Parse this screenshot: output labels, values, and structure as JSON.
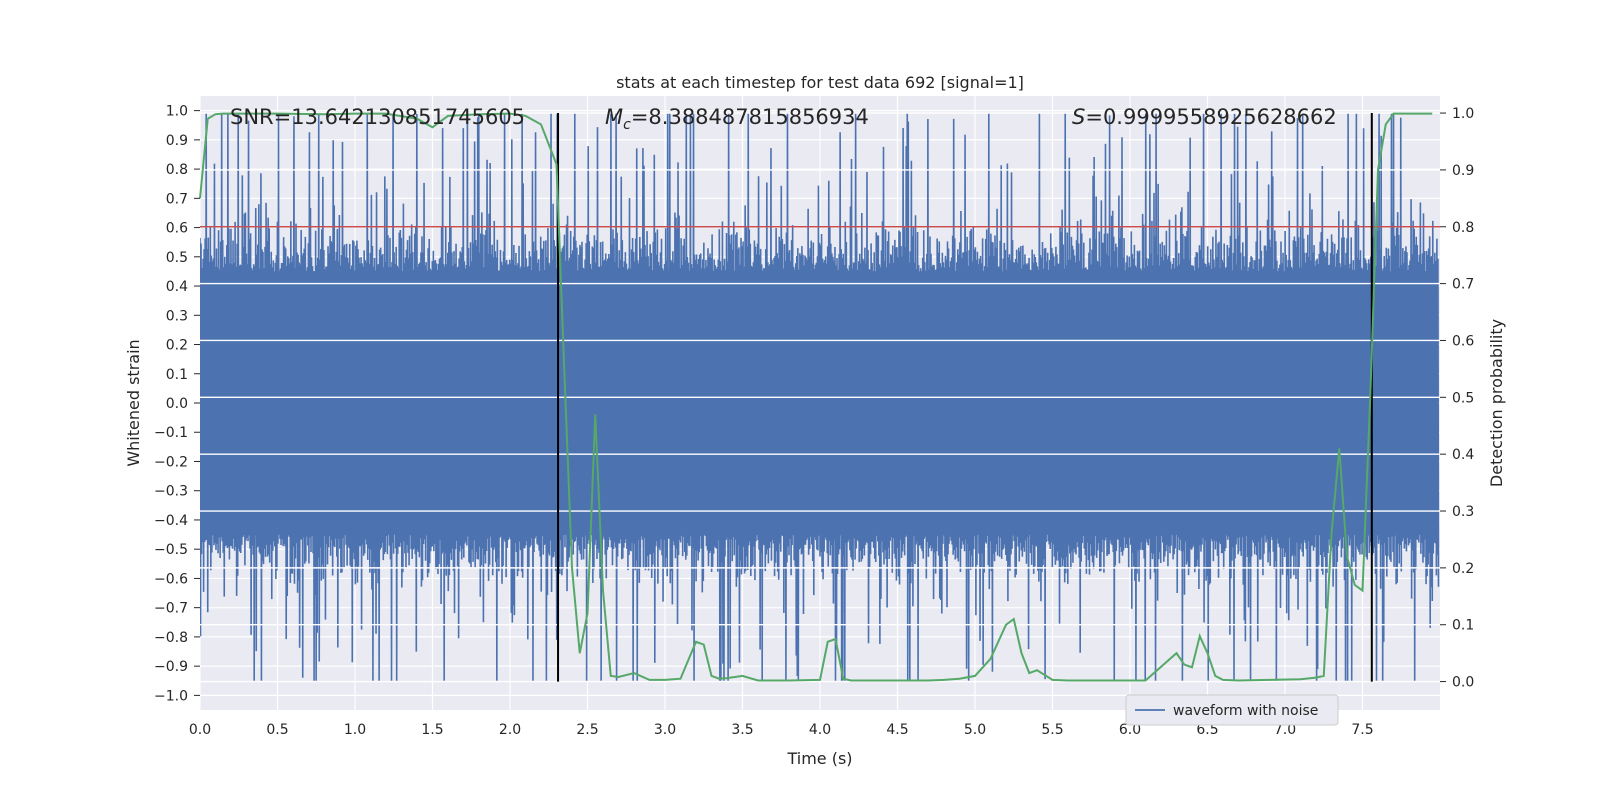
{
  "chart_data": {
    "type": "line",
    "title": "stats at each timestep for test data 692 [signal=1]",
    "xlabel": "Time (s)",
    "ylabel": "Whitened strain",
    "ylabel_right": "Detection probability",
    "xlim": [
      0.0,
      8.0
    ],
    "ylim": [
      -1.05,
      1.05
    ],
    "ylim_right": [
      -0.05,
      1.03
    ],
    "x_ticks": [
      "0.0",
      "0.5",
      "1.0",
      "1.5",
      "2.0",
      "2.5",
      "3.0",
      "3.5",
      "4.0",
      "4.5",
      "5.0",
      "5.5",
      "6.0",
      "6.5",
      "7.0",
      "7.5"
    ],
    "y_ticks": [
      "1.0",
      "0.9",
      "0.8",
      "0.7",
      "0.6",
      "0.5",
      "0.4",
      "0.3",
      "0.2",
      "0.1",
      "0.0",
      "-0.1",
      "-0.2",
      "-0.3",
      "-0.4",
      "-0.5",
      "-0.6",
      "-0.7",
      "-0.8",
      "-0.9",
      "-1.0"
    ],
    "y_ticks_right": [
      "1.0",
      "0.9",
      "0.8",
      "0.7",
      "0.6",
      "0.5",
      "0.4",
      "0.3",
      "0.2",
      "0.1",
      "0.0"
    ],
    "annotations": {
      "snr": "SNR=13.642130851745605",
      "mc_symbol": "M",
      "mc_sub": "c",
      "mc_value": "=8.388487815856934",
      "s_symbol": "S",
      "s_value": "=0.9999558925628662"
    },
    "threshold": {
      "axis": "right",
      "value": 0.8,
      "color": "#c44e52"
    },
    "vlines": [
      2.31,
      7.56
    ],
    "legend": {
      "label": "waveform with noise",
      "loc": "lower-right"
    },
    "waveform": {
      "name": "waveform with noise",
      "color": "#4c72b0",
      "duration": 7.99,
      "n_samples": 2400,
      "envelope": 0.45,
      "spike_max": 0.99,
      "spike_min": -0.95
    },
    "probability": {
      "name": "detection probability",
      "color": "#55a868",
      "x": [
        0.0,
        0.05,
        0.1,
        0.15,
        0.3,
        0.5,
        0.8,
        1.0,
        1.2,
        1.4,
        1.5,
        1.55,
        1.6,
        1.8,
        2.0,
        2.1,
        2.2,
        2.3,
        2.35,
        2.4,
        2.45,
        2.5,
        2.55,
        2.6,
        2.65,
        2.7,
        2.8,
        2.9,
        3.0,
        3.1,
        3.2,
        3.25,
        3.3,
        3.35,
        3.4,
        3.5,
        3.6,
        3.7,
        3.8,
        4.0,
        4.05,
        4.1,
        4.15,
        4.2,
        4.3,
        4.4,
        4.5,
        4.6,
        4.7,
        4.8,
        4.9,
        5.0,
        5.1,
        5.2,
        5.25,
        5.3,
        5.35,
        5.4,
        5.5,
        5.6,
        5.7,
        5.9,
        6.1,
        6.3,
        6.35,
        6.4,
        6.45,
        6.5,
        6.55,
        6.6,
        6.7,
        6.9,
        7.1,
        7.2,
        7.25,
        7.3,
        7.35,
        7.4,
        7.45,
        7.5,
        7.55,
        7.6,
        7.65,
        7.7,
        7.8,
        7.95
      ],
      "values": [
        0.85,
        0.99,
        0.998,
        0.999,
        0.999,
        0.999,
        0.998,
        0.999,
        0.999,
        0.99,
        0.975,
        0.985,
        0.995,
        0.998,
        0.999,
        0.995,
        0.98,
        0.91,
        0.55,
        0.2,
        0.05,
        0.12,
        0.47,
        0.16,
        0.01,
        0.008,
        0.015,
        0.003,
        0.003,
        0.005,
        0.07,
        0.065,
        0.01,
        0.005,
        0.006,
        0.01,
        0.002,
        0.002,
        0.002,
        0.003,
        0.07,
        0.075,
        0.005,
        0.002,
        0.002,
        0.002,
        0.002,
        0.002,
        0.002,
        0.003,
        0.005,
        0.01,
        0.04,
        0.1,
        0.11,
        0.05,
        0.015,
        0.02,
        0.003,
        0.002,
        0.002,
        0.002,
        0.002,
        0.05,
        0.03,
        0.025,
        0.08,
        0.05,
        0.01,
        0.003,
        0.002,
        0.003,
        0.004,
        0.007,
        0.01,
        0.26,
        0.41,
        0.22,
        0.17,
        0.16,
        0.5,
        0.9,
        0.98,
        0.999,
        0.999,
        0.999
      ]
    }
  }
}
